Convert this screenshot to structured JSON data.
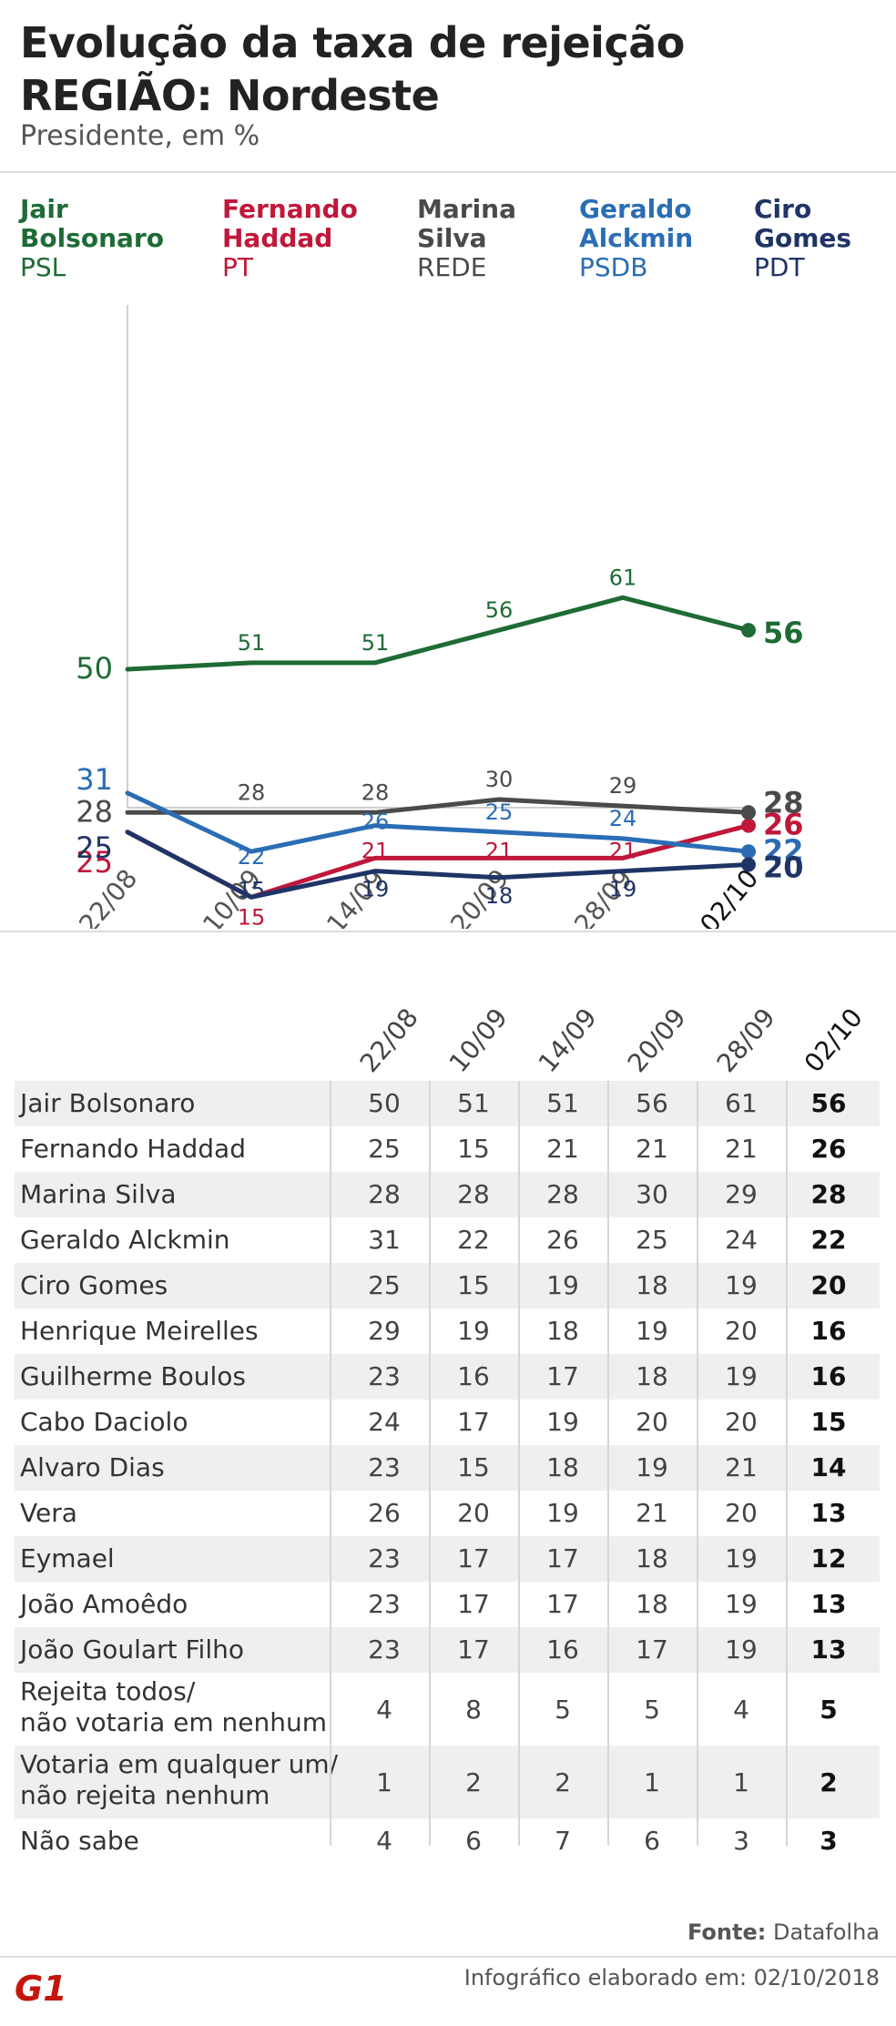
{
  "header": {
    "title_line1": "Evolução da taxa de rejeição",
    "title_line2": "REGIÃO: Nordeste",
    "subtitle": "Presidente, em %"
  },
  "legend": [
    {
      "name_line1": "Jair",
      "name_line2": "Bolsonaro",
      "party": "PSL",
      "color": "#1e6b35"
    },
    {
      "name_line1": "Fernando",
      "name_line2": "Haddad",
      "party": "PT",
      "color": "#c0173a"
    },
    {
      "name_line1": "Marina",
      "name_line2": "Silva",
      "party": "REDE",
      "color": "#4a4a4a"
    },
    {
      "name_line1": "Geraldo",
      "name_line2": "Alckmin",
      "party": "PSDB",
      "color": "#2a6db5"
    },
    {
      "name_line1": "Ciro",
      "name_line2": "Gomes",
      "party": "PDT",
      "color": "#1f3466"
    }
  ],
  "chart_data": {
    "type": "line",
    "x": [
      "22/08",
      "10/09",
      "14/09",
      "20/09",
      "28/09",
      "02/10"
    ],
    "ylim": [
      0,
      70
    ],
    "series": [
      {
        "name": "Jair Bolsonaro",
        "color": "#1e6b35",
        "values": [
          50,
          51,
          51,
          56,
          61,
          56
        ]
      },
      {
        "name": "Fernando Haddad",
        "color": "#c0173a",
        "values": [
          25,
          15,
          21,
          21,
          21,
          26
        ]
      },
      {
        "name": "Marina Silva",
        "color": "#4a4a4a",
        "values": [
          28,
          28,
          28,
          30,
          29,
          28
        ]
      },
      {
        "name": "Geraldo Alckmin",
        "color": "#2a6db5",
        "values": [
          31,
          22,
          26,
          25,
          24,
          22
        ]
      },
      {
        "name": "Ciro Gomes",
        "color": "#1f3466",
        "values": [
          25,
          15,
          19,
          18,
          19,
          20
        ]
      }
    ]
  },
  "table": {
    "columns": [
      "22/08",
      "10/09",
      "14/09",
      "20/09",
      "28/09",
      "02/10"
    ],
    "rows": [
      {
        "name": "Jair Bolsonaro",
        "values": [
          "50",
          "51",
          "51",
          "56",
          "61",
          "56"
        ]
      },
      {
        "name": "Fernando Haddad",
        "values": [
          "25",
          "15",
          "21",
          "21",
          "21",
          "26"
        ]
      },
      {
        "name": "Marina Silva",
        "values": [
          "28",
          "28",
          "28",
          "30",
          "29",
          "28"
        ]
      },
      {
        "name": "Geraldo Alckmin",
        "values": [
          "31",
          "22",
          "26",
          "25",
          "24",
          "22"
        ]
      },
      {
        "name": "Ciro Gomes",
        "values": [
          "25",
          "15",
          "19",
          "18",
          "19",
          "20"
        ]
      },
      {
        "name": "Henrique Meirelles",
        "values": [
          "29",
          "19",
          "18",
          "19",
          "20",
          "16"
        ]
      },
      {
        "name": "Guilherme Boulos",
        "values": [
          "23",
          "16",
          "17",
          "18",
          "19",
          "16"
        ]
      },
      {
        "name": "Cabo Daciolo",
        "values": [
          "24",
          "17",
          "19",
          "20",
          "20",
          "15"
        ]
      },
      {
        "name": "Alvaro Dias",
        "values": [
          "23",
          "15",
          "18",
          "19",
          "21",
          "14"
        ]
      },
      {
        "name": "Vera",
        "values": [
          "26",
          "20",
          "19",
          "21",
          "20",
          "13"
        ]
      },
      {
        "name": "Eymael",
        "values": [
          "23",
          "17",
          "17",
          "18",
          "19",
          "12"
        ]
      },
      {
        "name": "João Amoêdo",
        "values": [
          "23",
          "17",
          "17",
          "18",
          "19",
          "13"
        ]
      },
      {
        "name": "João Goulart Filho",
        "values": [
          "23",
          "17",
          "16",
          "17",
          "19",
          "13"
        ]
      },
      {
        "name": "Rejeita todos/\nnão votaria em nenhum",
        "values": [
          "4",
          "8",
          "5",
          "5",
          "4",
          "5"
        ]
      },
      {
        "name": "Votaria em qualquer um/\nnão rejeita nenhum",
        "values": [
          "1",
          "2",
          "2",
          "1",
          "1",
          "2"
        ]
      },
      {
        "name": "Não sabe",
        "values": [
          "4",
          "6",
          "7",
          "6",
          "3",
          "3"
        ]
      }
    ]
  },
  "footer": {
    "source_label": "Fonte:",
    "source_value": "Datafolha",
    "credit": "Infográfico elaborado em: 02/10/2018",
    "logo_text": "G1"
  }
}
